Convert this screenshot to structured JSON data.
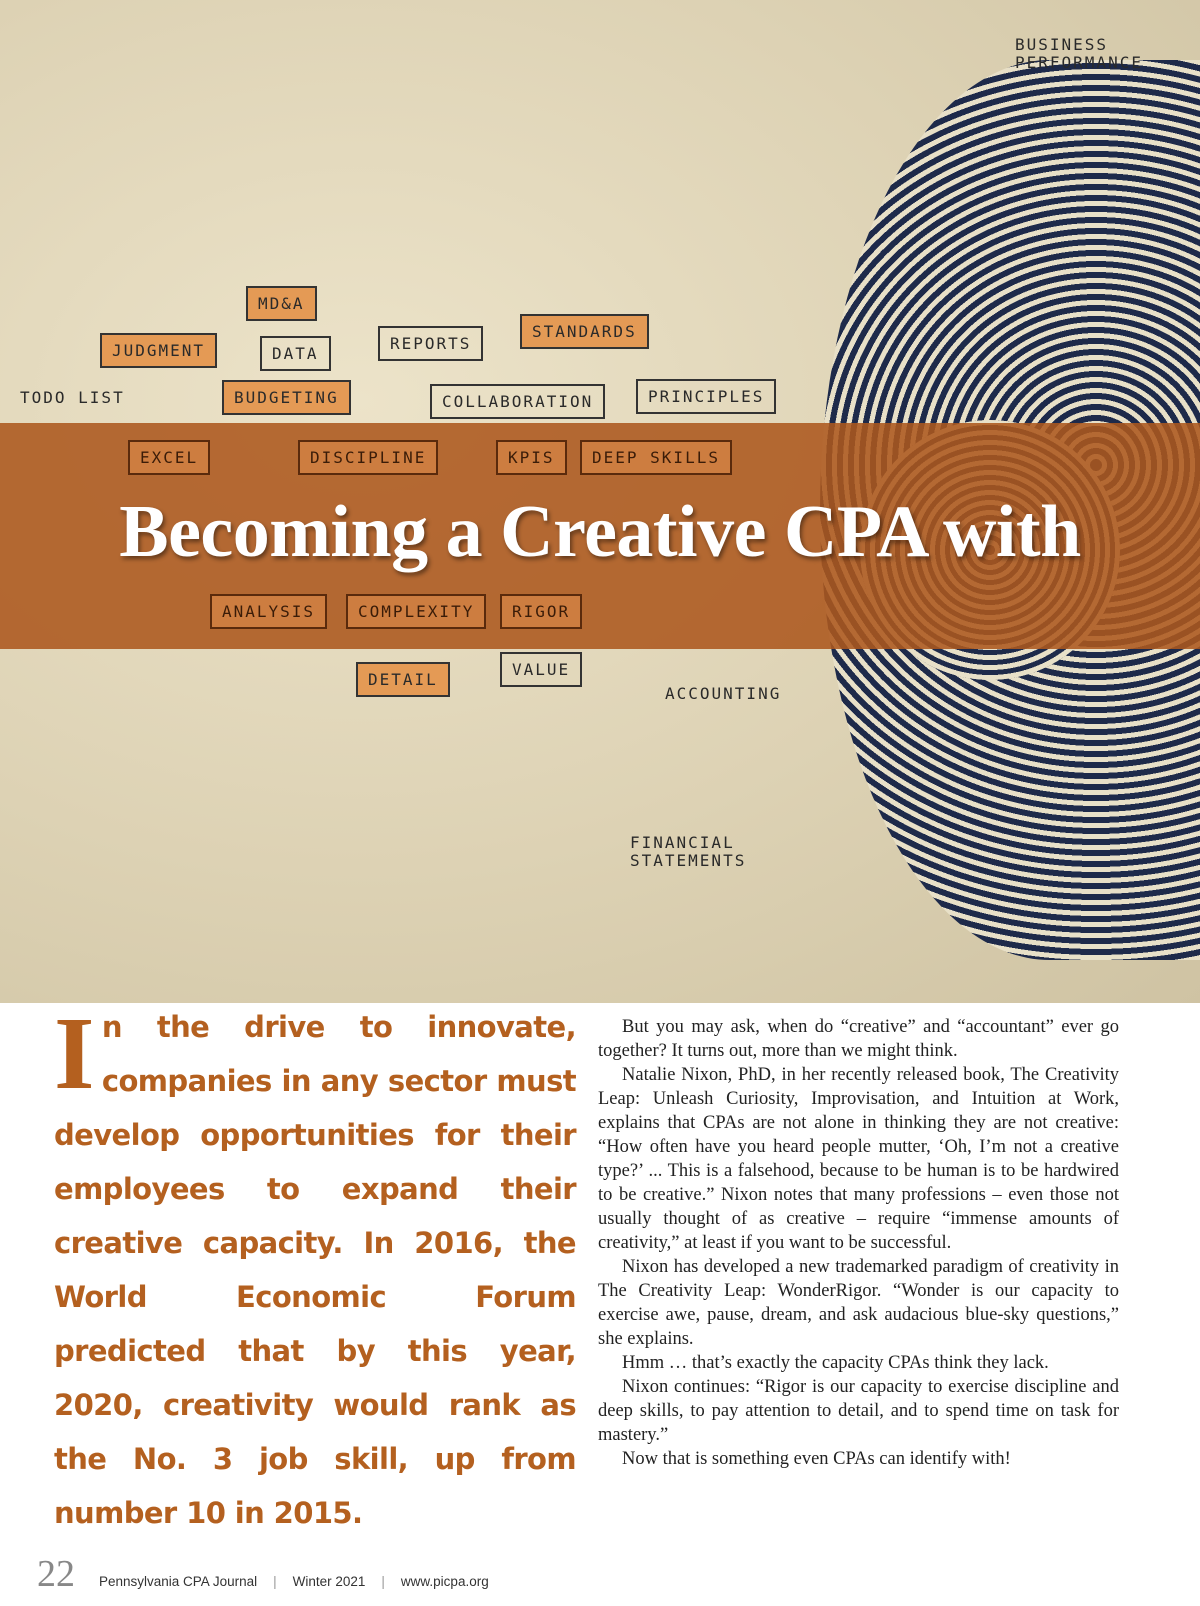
{
  "illustration": {
    "labels": [
      "BUSINESS PERFORMANCE",
      "MD&A",
      "JUDGMENT",
      "DATA",
      "REPORTS",
      "STANDARDS",
      "TODO LIST",
      "BUDGETING",
      "COLLABORATION",
      "PRINCIPLES",
      "EXCEL",
      "DISCIPLINE",
      "KPIS",
      "DEEP SKILLS",
      "ANALYSIS",
      "COMPLEXITY",
      "RIGOR",
      "VALUE",
      "DETAIL",
      "ACCOUNTING",
      "FINANCIAL STATEMENTS"
    ]
  },
  "article": {
    "title": "Becoming a Creative CPA with",
    "dropcap": "I",
    "lead": "n the drive to innovate, companies in any sector must develop opportunities for their employees to expand their creative capacity. In 2016, the World Economic Forum predicted that by this year, 2020, creativity would rank as the No. 3 job skill, up from number 10 in 2015.",
    "paragraphs": [
      "But you may ask, when do “creative” and “accountant” ever go together? It turns out, more than we might think.",
      "Natalie Nixon, PhD, in her recently released book, The Creativity Leap: Unleash Curiosity, Improvisation, and Intuition at Work, explains that CPAs are not alone in thinking they are not creative: “How often have you heard people mutter, ‘Oh, I’m not a creative type?’ ... This is a falsehood, because to be human is to be hardwired to be creative.” Nixon notes that many professions – even those not usually thought of as creative – require “immense amounts of creativity,” at least if you want to be successful.",
      "Nixon has developed a new trademarked paradigm of creativity in The Creativity Leap: WonderRigor. “Wonder is our capacity to exercise awe, pause, dream, and ask audacious blue-sky questions,” she explains.",
      "Hmm … that’s exactly the capacity CPAs think they lack.",
      "Nixon continues: “Rigor is our capacity to exercise discipline and deep skills, to pay attention to detail, and to spend time on task for mastery.”",
      "Now that is something even CPAs can identify with!"
    ]
  },
  "footer": {
    "page": "22",
    "publication": "Pennsylvania CPA Journal",
    "issue": "Winter 2021",
    "url": "www.picpa.org"
  },
  "colors": {
    "accent": "#b4601f",
    "banner": "#ac581e"
  }
}
